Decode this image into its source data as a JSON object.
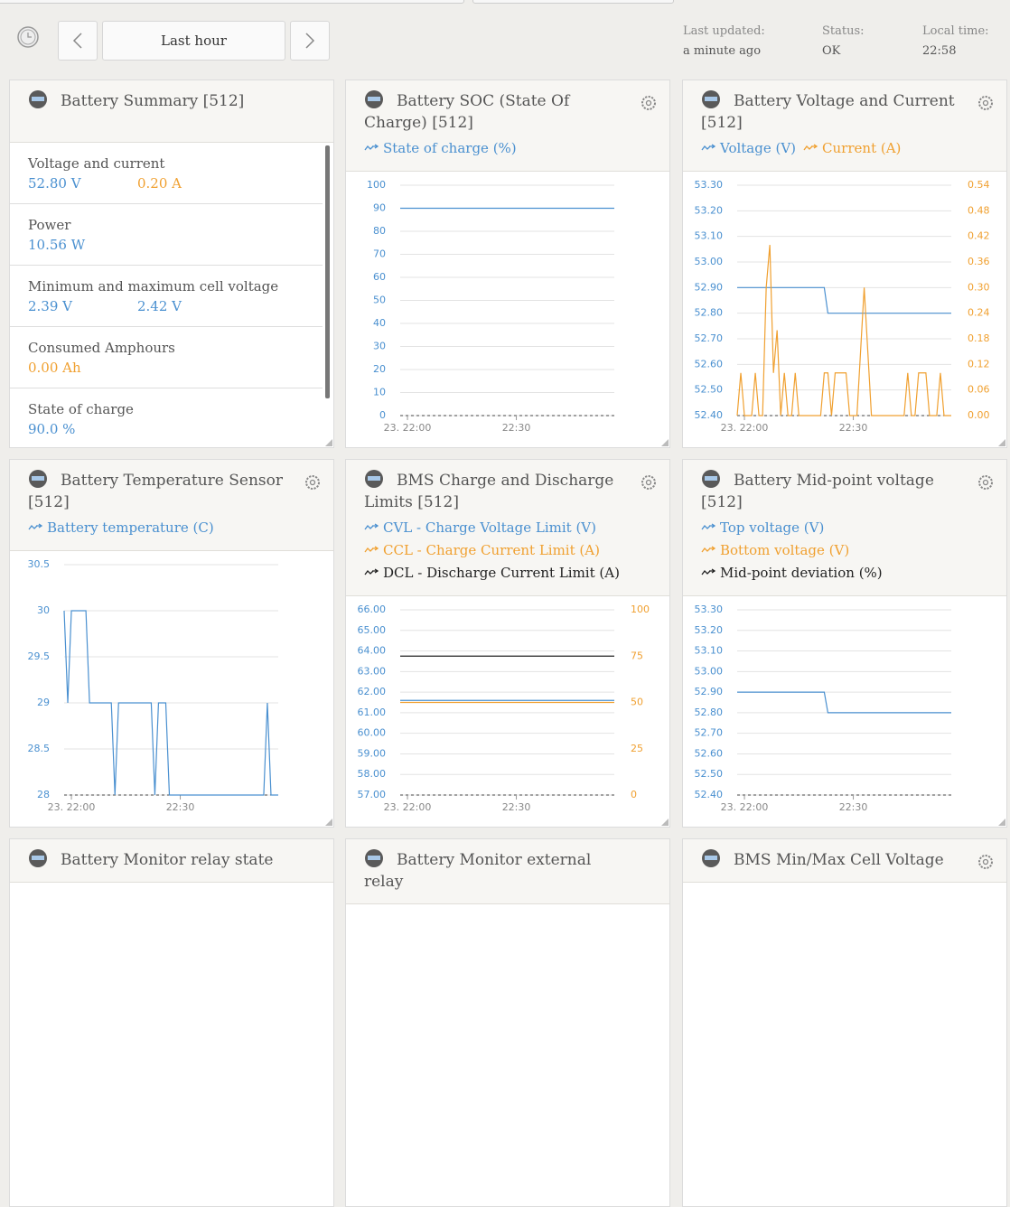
{
  "header": {
    "time_range": "Last hour",
    "last_updated_label": "Last updated:",
    "last_updated": "a minute ago",
    "status_label": "Status:",
    "status": "OK",
    "local_time_label": "Local time:",
    "local_time": "22:58"
  },
  "widgets": [
    {
      "title": "Battery Summary [512]",
      "items": [
        {
          "label": "Voltage and current",
          "values": [
            {
              "text": "52.80 V",
              "color": "#4a90d0"
            },
            {
              "text": "0.20 A",
              "color": "#f0a030"
            }
          ]
        },
        {
          "label": "Power",
          "values": [
            {
              "text": "10.56 W",
              "color": "#4a90d0"
            }
          ]
        },
        {
          "label": "Minimum and maximum cell voltage",
          "values": [
            {
              "text": "2.39 V",
              "color": "#4a90d0"
            },
            {
              "text": "2.42 V",
              "color": "#4a90d0"
            }
          ]
        },
        {
          "label": "Consumed Amphours",
          "values": [
            {
              "text": "0.00 Ah",
              "color": "#f0a030"
            }
          ]
        },
        {
          "label": "State of charge",
          "values": [
            {
              "text": "90.0 %",
              "color": "#4a90d0"
            }
          ]
        }
      ]
    },
    {
      "title": "Battery SOC (State Of Charge) [512]",
      "settings_icon": true,
      "chart_data": {
        "type": "line",
        "x": [
          "21:58",
          "22:57"
        ],
        "series": [
          {
            "name": "State of charge (%)",
            "color": "#4a90d0",
            "values": [
              90,
              90
            ]
          }
        ],
        "xlim": [
          "21:58",
          "22:57"
        ],
        "xticks": [
          {
            "value": "22:00",
            "label": "23. 22:00"
          },
          "22:30"
        ],
        "ylim": [
          0,
          100
        ],
        "yticks": [
          0,
          10,
          20,
          30,
          40,
          50,
          60,
          70,
          80,
          90,
          100
        ],
        "grid": true
      }
    },
    {
      "title": "Battery Voltage and Current [512]",
      "settings_icon": true,
      "chart_data": {
        "type": "line",
        "x": [
          "21:58",
          "21:59",
          "22:00",
          "22:01",
          "22:02",
          "22:03",
          "22:04",
          "22:05",
          "22:06",
          "22:07",
          "22:08",
          "22:09",
          "22:10",
          "22:11",
          "22:12",
          "22:13",
          "22:14",
          "22:15",
          "22:16",
          "22:17",
          "22:18",
          "22:19",
          "22:20",
          "22:21",
          "22:22",
          "22:23",
          "22:24",
          "22:25",
          "22:26",
          "22:27",
          "22:28",
          "22:29",
          "22:30",
          "22:31",
          "22:32",
          "22:33",
          "22:34",
          "22:35",
          "22:36",
          "22:37",
          "22:38",
          "22:39",
          "22:40",
          "22:41",
          "22:42",
          "22:43",
          "22:44",
          "22:45",
          "22:46",
          "22:47",
          "22:48",
          "22:49",
          "22:50",
          "22:51",
          "22:52",
          "22:53",
          "22:54",
          "22:55",
          "22:56",
          "22:57"
        ],
        "series": [
          {
            "name": "Voltage (V)",
            "color": "#4a90d0",
            "values": [
              52.9,
              52.9,
              52.9,
              52.9,
              52.9,
              52.9,
              52.9,
              52.9,
              52.9,
              52.9,
              52.9,
              52.9,
              52.9,
              52.9,
              52.9,
              52.9,
              52.9,
              52.9,
              52.9,
              52.9,
              52.9,
              52.9,
              52.9,
              52.9,
              52.9,
              52.8,
              52.8,
              52.8,
              52.8,
              52.8,
              52.8,
              52.8,
              52.8,
              52.8,
              52.8,
              52.8,
              52.8,
              52.8,
              52.8,
              52.8,
              52.8,
              52.8,
              52.8,
              52.8,
              52.8,
              52.8,
              52.8,
              52.8,
              52.8,
              52.8,
              52.8,
              52.8,
              52.8,
              52.8,
              52.8,
              52.8,
              52.8,
              52.8,
              52.8,
              52.8
            ]
          },
          {
            "name": "Current (A)",
            "color": "#f0a030",
            "axis": "y2",
            "values": [
              0,
              0.1,
              0,
              0,
              0,
              0.1,
              0,
              0,
              0.3,
              0.4,
              0.1,
              0.2,
              0,
              0.1,
              0,
              0,
              0.1,
              0,
              0,
              0,
              0,
              0,
              0,
              0,
              0.1,
              0.1,
              0,
              0.1,
              0.1,
              0.1,
              0.1,
              0,
              0,
              0,
              0.15,
              0.3,
              0.15,
              0,
              0,
              0,
              0,
              0,
              0,
              0,
              0,
              0,
              0,
              0.1,
              0,
              0,
              0.1,
              0.1,
              0.1,
              0,
              0,
              0,
              0.1,
              0,
              0,
              0
            ]
          }
        ],
        "xlim": [
          "21:58",
          "22:57"
        ],
        "xticks": [
          {
            "value": "22:00",
            "label": "23. 22:00"
          },
          "22:30"
        ],
        "ylim": [
          52.4,
          53.3
        ],
        "yticks": [
          {
            "value": 52.4,
            "label": "52.40"
          },
          {
            "value": 52.5,
            "label": "52.50"
          },
          {
            "value": 52.6,
            "label": "52.60"
          },
          {
            "value": 52.7,
            "label": "52.70"
          },
          {
            "value": 52.8,
            "label": "52.80"
          },
          {
            "value": 52.9,
            "label": "52.90"
          },
          {
            "value": 53.0,
            "label": "53.00"
          },
          {
            "value": 53.1,
            "label": "53.10"
          },
          {
            "value": 53.2,
            "label": "53.20"
          },
          {
            "value": 53.3,
            "label": "53.30"
          }
        ],
        "y2lim": [
          0,
          0.54
        ],
        "y2ticks": [
          {
            "value": 0,
            "label": "0.00"
          },
          {
            "value": 0.06,
            "label": "0.06"
          },
          {
            "value": 0.12,
            "label": "0.12"
          },
          {
            "value": 0.18,
            "label": "0.18"
          },
          {
            "value": 0.24,
            "label": "0.24"
          },
          {
            "value": 0.3,
            "label": "0.30"
          },
          {
            "value": 0.36,
            "label": "0.36"
          },
          {
            "value": 0.42,
            "label": "0.42"
          },
          {
            "value": 0.48,
            "label": "0.48"
          },
          {
            "value": 0.54,
            "label": "0.54"
          }
        ],
        "grid": true
      }
    },
    {
      "title": "Battery Temperature Sensor [512]",
      "settings_icon": true,
      "chart_data": {
        "type": "line",
        "x": [
          "21:58",
          "21:59",
          "22:00",
          "22:01",
          "22:02",
          "22:03",
          "22:04",
          "22:05",
          "22:06",
          "22:07",
          "22:08",
          "22:09",
          "22:10",
          "22:11",
          "22:12",
          "22:13",
          "22:14",
          "22:15",
          "22:16",
          "22:17",
          "22:18",
          "22:19",
          "22:20",
          "22:21",
          "22:22",
          "22:23",
          "22:24",
          "22:25",
          "22:26",
          "22:27",
          "22:28",
          "22:29",
          "22:30",
          "22:31",
          "22:32",
          "22:33",
          "22:34",
          "22:35",
          "22:36",
          "22:37",
          "22:38",
          "22:39",
          "22:40",
          "22:41",
          "22:42",
          "22:43",
          "22:44",
          "22:45",
          "22:46",
          "22:47",
          "22:48",
          "22:49",
          "22:50",
          "22:51",
          "22:52",
          "22:53",
          "22:54",
          "22:55",
          "22:56",
          "22:57"
        ],
        "series": [
          {
            "name": "Battery temperature (C)",
            "color": "#4a90d0",
            "values": [
              30,
              29,
              30,
              30,
              30,
              30,
              30,
              29,
              29,
              29,
              29,
              29,
              29,
              29,
              28,
              29,
              29,
              29,
              29,
              29,
              29,
              29,
              29,
              29,
              29,
              28,
              29,
              29,
              29,
              28,
              28,
              28,
              28,
              28,
              28,
              28,
              28,
              28,
              28,
              28,
              28,
              28,
              28,
              28,
              28,
              28,
              28,
              28,
              28,
              28,
              28,
              28,
              28,
              28,
              28,
              28,
              29,
              28,
              28,
              28
            ]
          }
        ],
        "xlim": [
          "21:58",
          "22:57"
        ],
        "xticks": [
          {
            "value": "22:00",
            "label": "23. 22:00"
          },
          "22:30"
        ],
        "ylim": [
          28,
          30.5
        ],
        "yticks": [
          28,
          28.5,
          29,
          29.5,
          30,
          30.5
        ],
        "grid": true
      }
    },
    {
      "title": "BMS Charge and Discharge Limits [512]",
      "settings_icon": true,
      "chart_data": {
        "type": "line",
        "x": [
          "21:58",
          "22:57"
        ],
        "series": [
          {
            "name": "CVL - Charge Voltage Limit (V)",
            "color": "#4a90d0",
            "values": [
              61.6,
              61.6
            ]
          },
          {
            "name": "CCL - Charge Current Limit (A)",
            "color": "#f0a030",
            "axis": "y2",
            "values": [
              50,
              50
            ]
          },
          {
            "name": "DCL - Discharge Current Limit (A)",
            "color": "#222222",
            "axis": "y2",
            "values": [
              75,
              75
            ]
          }
        ],
        "xlim": [
          "21:58",
          "22:57"
        ],
        "xticks": [
          {
            "value": "22:00",
            "label": "23. 22:00"
          },
          "22:30"
        ],
        "ylim": [
          57,
          66
        ],
        "yticks": [
          {
            "value": 57,
            "label": "57.00"
          },
          {
            "value": 58,
            "label": "58.00"
          },
          {
            "value": 59,
            "label": "59.00"
          },
          {
            "value": 60,
            "label": "60.00"
          },
          {
            "value": 61,
            "label": "61.00"
          },
          {
            "value": 62,
            "label": "62.00"
          },
          {
            "value": 63,
            "label": "63.00"
          },
          {
            "value": 64,
            "label": "64.00"
          },
          {
            "value": 65,
            "label": "65.00"
          },
          {
            "value": 66,
            "label": "66.00"
          }
        ],
        "y2lim": [
          0,
          100
        ],
        "y2ticks": [
          0,
          25,
          50,
          75,
          100
        ],
        "grid": true
      }
    },
    {
      "title": "Battery Mid-point voltage [512]",
      "settings_icon": true,
      "chart_data": {
        "type": "line",
        "x": [
          "21:58",
          "22:22",
          "22:23",
          "22:57"
        ],
        "series": [
          {
            "name": "Top voltage (V)",
            "color": "#4a90d0",
            "values": [
              52.9,
              52.9,
              52.8,
              52.8
            ]
          },
          {
            "name": "Bottom voltage (V)",
            "color": "#f0a030"
          },
          {
            "name": "Mid-point deviation (%)",
            "color": "#222222"
          }
        ],
        "xlim": [
          "21:58",
          "22:57"
        ],
        "xticks": [
          {
            "value": "22:00",
            "label": "23. 22:00"
          },
          "22:30"
        ],
        "ylim": [
          52.4,
          53.3
        ],
        "yticks": [
          {
            "value": 52.4,
            "label": "52.40"
          },
          {
            "value": 52.5,
            "label": "52.50"
          },
          {
            "value": 52.6,
            "label": "52.60"
          },
          {
            "value": 52.7,
            "label": "52.70"
          },
          {
            "value": 52.8,
            "label": "52.80"
          },
          {
            "value": 52.9,
            "label": "52.90"
          },
          {
            "value": 53.0,
            "label": "53.00"
          },
          {
            "value": 53.1,
            "label": "53.10"
          },
          {
            "value": 53.2,
            "label": "53.20"
          },
          {
            "value": 53.3,
            "label": "53.30"
          }
        ],
        "grid": true
      }
    },
    {
      "title": "Battery Monitor relay state"
    },
    {
      "title": "Battery Monitor external relay"
    },
    {
      "title": "BMS Min/Max Cell Voltage",
      "settings_icon": true
    }
  ]
}
